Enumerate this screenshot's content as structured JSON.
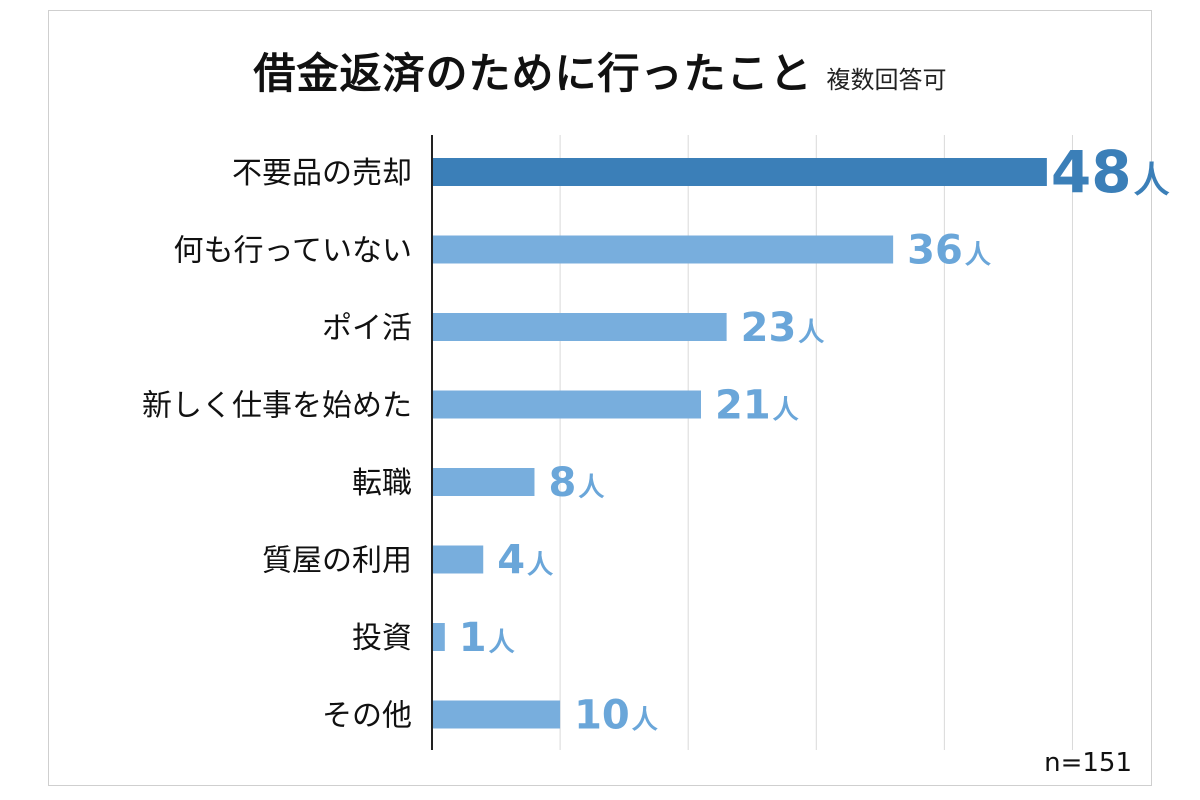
{
  "title": "借金返済のために行ったこと",
  "subtitle": "複数回答可",
  "sample_note": "n=151",
  "colors": {
    "highlight_bar": "#3b7fb8",
    "bar": "#78aedd",
    "highlight_label": "#3b7fb8",
    "label": "#6aa6d9",
    "gridline": "#d9d9d9",
    "axis": "#222222"
  },
  "chart_data": {
    "type": "bar",
    "orientation": "horizontal",
    "title": "借金返済のために行ったこと",
    "subtitle": "複数回答可",
    "xlabel": "",
    "ylabel": "",
    "unit": "人",
    "xlim": [
      0,
      50
    ],
    "grid": true,
    "categories": [
      "不要品の売却",
      "何も行っていない",
      "ポイ活",
      "新しく仕事を始めた",
      "転職",
      "質屋の利用",
      "投資",
      "その他"
    ],
    "values": [
      48,
      36,
      23,
      21,
      8,
      4,
      1,
      10
    ],
    "data_labels": [
      "48人",
      "36人",
      "23人",
      "21人",
      "8人",
      "4人",
      "1人",
      "10人"
    ],
    "highlight_index": 0
  }
}
